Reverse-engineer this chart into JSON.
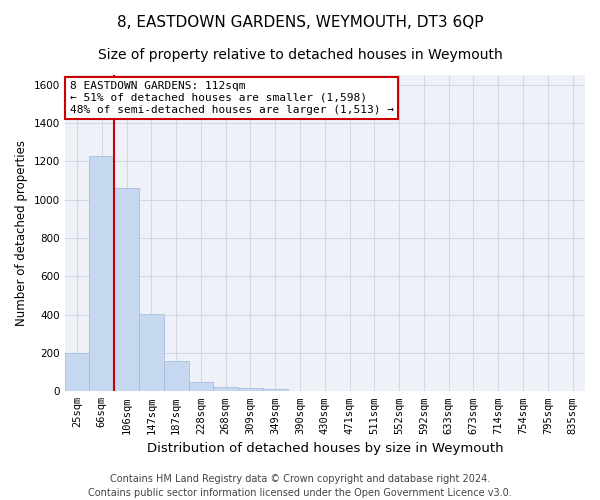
{
  "title": "8, EASTDOWN GARDENS, WEYMOUTH, DT3 6QP",
  "subtitle": "Size of property relative to detached houses in Weymouth",
  "xlabel": "Distribution of detached houses by size in Weymouth",
  "ylabel": "Number of detached properties",
  "categories": [
    "25sqm",
    "66sqm",
    "106sqm",
    "147sqm",
    "187sqm",
    "228sqm",
    "268sqm",
    "309sqm",
    "349sqm",
    "390sqm",
    "430sqm",
    "471sqm",
    "511sqm",
    "552sqm",
    "592sqm",
    "633sqm",
    "673sqm",
    "714sqm",
    "754sqm",
    "795sqm",
    "835sqm"
  ],
  "values": [
    200,
    1225,
    1060,
    405,
    160,
    50,
    25,
    15,
    10,
    0,
    0,
    0,
    0,
    0,
    0,
    0,
    0,
    0,
    0,
    0,
    0
  ],
  "bar_color": "#c5d8f0",
  "bar_edge_color": "#a0b8d8",
  "vline_x": 1.5,
  "vline_color": "#cc0000",
  "annotation_text": "8 EASTDOWN GARDENS: 112sqm\n← 51% of detached houses are smaller (1,598)\n48% of semi-detached houses are larger (1,513) →",
  "annotation_box_color": "#ffffff",
  "annotation_box_edge_color": "#cc0000",
  "ylim": [
    0,
    1650
  ],
  "yticks": [
    0,
    200,
    400,
    600,
    800,
    1000,
    1200,
    1400,
    1600
  ],
  "grid_color": "#d0d8e8",
  "background_color": "#eef2f8",
  "footer_line1": "Contains HM Land Registry data © Crown copyright and database right 2024.",
  "footer_line2": "Contains public sector information licensed under the Open Government Licence v3.0.",
  "title_fontsize": 11,
  "subtitle_fontsize": 10,
  "xlabel_fontsize": 9.5,
  "ylabel_fontsize": 8.5,
  "tick_fontsize": 7.5,
  "footer_fontsize": 7,
  "ann_fontsize": 8
}
